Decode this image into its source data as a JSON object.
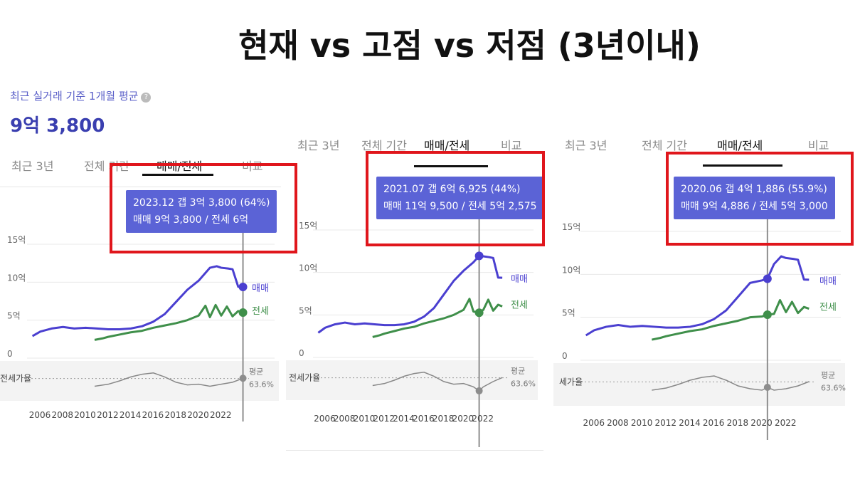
{
  "title": "현재 vs 고점 vs 저점 (3년이내)",
  "summary": {
    "label": "최근 실거래 기준 1개월 평균",
    "value": "9억 3,800"
  },
  "colors": {
    "sale": "#4a3fd0",
    "jeonse": "#3f8f4a",
    "ratio": "#888888",
    "tooltip_bg": "#5b63d6",
    "highlight": "#e0161c"
  },
  "chart_data": [
    {
      "type": "line",
      "tabs": [
        "최근 3년",
        "전체 기간",
        "매매/전세",
        "비교"
      ],
      "active_tab": "매매/전세",
      "tooltip": {
        "line1": "2023.12  갭 3억 3,800 (64%)",
        "line2": "매매 9억 3,800 / 전세 6억"
      },
      "y_ticks": [
        "15억",
        "10억",
        "5억",
        "0"
      ],
      "x_ticks": [
        "2006",
        "2008",
        "2010",
        "2012",
        "2014",
        "2016",
        "2018",
        "2020",
        "2022"
      ],
      "ylim": [
        0,
        15
      ],
      "xlim": [
        2005.2,
        2024.2
      ],
      "marker_x": 2023.92,
      "series": [
        {
          "name": "매매",
          "x": [
            2005.3,
            2006,
            2007,
            2008,
            2009,
            2010,
            2011,
            2012,
            2013,
            2014,
            2015,
            2016,
            2017,
            2018,
            2019,
            2020,
            2021,
            2021.6,
            2022,
            2022.6,
            2023,
            2023.5,
            2023.92
          ],
          "y": [
            2.9,
            3.5,
            3.9,
            4.1,
            3.9,
            4.0,
            3.9,
            3.8,
            3.8,
            3.9,
            4.2,
            4.8,
            5.8,
            7.4,
            9.0,
            10.2,
            11.9,
            12.1,
            11.9,
            11.8,
            11.7,
            9.4,
            9.38
          ]
        },
        {
          "name": "전세",
          "x": [
            2010.8,
            2011.5,
            2012,
            2013,
            2014,
            2015,
            2016,
            2017,
            2018,
            2019,
            2020,
            2020.6,
            2021,
            2021.5,
            2022,
            2022.5,
            2023,
            2023.5,
            2023.92
          ],
          "y": [
            2.4,
            2.6,
            2.8,
            3.1,
            3.4,
            3.6,
            4.0,
            4.3,
            4.6,
            5.0,
            5.6,
            6.9,
            5.4,
            7.0,
            5.6,
            6.8,
            5.5,
            6.2,
            6.0
          ]
        }
      ],
      "ratio": {
        "label": "전세가율",
        "avg_label": "평균",
        "avg_value": "63.6%",
        "x": [
          2010.8,
          2012,
          2013,
          2014,
          2015,
          2016,
          2017,
          2018,
          2019,
          2020,
          2021,
          2022,
          2023,
          2023.92
        ],
        "y": [
          52,
          55,
          60,
          66,
          70,
          72,
          66,
          58,
          54,
          55,
          52,
          55,
          58,
          64
        ]
      }
    },
    {
      "type": "line",
      "tabs": [
        "최근 3년",
        "전체 기간",
        "매매/전세",
        "비교"
      ],
      "active_tab": "매매/전세",
      "tooltip": {
        "line1": "2021.07  갭 6억 6,925 (44%)",
        "line2": "매매 11억 9,500 / 전세 5억 2,575"
      },
      "y_ticks": [
        "15억",
        "10억",
        "5억",
        "0"
      ],
      "x_ticks": [
        "2006",
        "2008",
        "2010",
        "2012",
        "2014",
        "2016",
        "2018",
        "2020",
        "2022"
      ],
      "ylim": [
        0,
        15
      ],
      "xlim": [
        2005.2,
        2024.2
      ],
      "marker_x": 2021.58,
      "series": [
        {
          "name": "매매",
          "x": [
            2005.3,
            2006,
            2007,
            2008,
            2009,
            2010,
            2011,
            2012,
            2013,
            2014,
            2015,
            2016,
            2017,
            2018,
            2019,
            2020,
            2021,
            2021.58,
            2022,
            2022.6,
            2023,
            2023.5,
            2023.92
          ],
          "y": [
            2.9,
            3.5,
            3.9,
            4.1,
            3.9,
            4.0,
            3.9,
            3.8,
            3.8,
            3.9,
            4.2,
            4.8,
            5.8,
            7.4,
            9.0,
            10.2,
            11.2,
            11.95,
            11.9,
            11.8,
            11.7,
            9.4,
            9.38
          ]
        },
        {
          "name": "전세",
          "x": [
            2010.8,
            2011.5,
            2012,
            2013,
            2014,
            2015,
            2016,
            2017,
            2018,
            2019,
            2020,
            2020.6,
            2021,
            2021.58,
            2022,
            2022.5,
            2023,
            2023.5,
            2023.92
          ],
          "y": [
            2.4,
            2.6,
            2.8,
            3.1,
            3.4,
            3.6,
            4.0,
            4.3,
            4.6,
            5.0,
            5.6,
            6.9,
            5.4,
            5.26,
            5.6,
            6.8,
            5.5,
            6.2,
            6.0
          ]
        }
      ],
      "ratio": {
        "label": "전세가율",
        "avg_label": "평균",
        "avg_value": "63.6%",
        "x": [
          2010.8,
          2012,
          2013,
          2014,
          2015,
          2016,
          2017,
          2018,
          2019,
          2020,
          2021,
          2021.58,
          2022,
          2023,
          2023.92
        ],
        "y": [
          52,
          55,
          60,
          66,
          70,
          72,
          66,
          58,
          54,
          55,
          50,
          44,
          50,
          58,
          64
        ]
      }
    },
    {
      "type": "line",
      "tabs": [
        "최근 3년",
        "전체 기간",
        "매매/전세",
        "비교"
      ],
      "active_tab": "매매/전세",
      "tooltip": {
        "line1": "2020.06  갭 4억 1,886 (55.9%)",
        "line2": "매매 9억 4,886 / 전세 5억 3,000"
      },
      "y_ticks": [
        "15억",
        "10억",
        "5억",
        "0"
      ],
      "x_ticks": [
        "2006",
        "2008",
        "2010",
        "2012",
        "2014",
        "2016",
        "2018",
        "2020",
        "2022"
      ],
      "ylim": [
        0,
        15
      ],
      "xlim": [
        2005.2,
        2024.2
      ],
      "marker_x": 2020.45,
      "series": [
        {
          "name": "매매",
          "x": [
            2005.3,
            2006,
            2007,
            2008,
            2009,
            2010,
            2011,
            2012,
            2013,
            2014,
            2015,
            2016,
            2017,
            2018,
            2019,
            2020,
            2020.45,
            2021,
            2021.6,
            2022,
            2022.6,
            2023,
            2023.5,
            2023.92
          ],
          "y": [
            2.9,
            3.5,
            3.9,
            4.1,
            3.9,
            4.0,
            3.9,
            3.8,
            3.8,
            3.9,
            4.2,
            4.8,
            5.8,
            7.4,
            9.0,
            9.3,
            9.49,
            11.2,
            12.1,
            11.9,
            11.8,
            11.7,
            9.4,
            9.38
          ]
        },
        {
          "name": "전세",
          "x": [
            2010.8,
            2011.5,
            2012,
            2013,
            2014,
            2015,
            2016,
            2017,
            2018,
            2019,
            2020,
            2020.45,
            2021,
            2021.5,
            2022,
            2022.5,
            2023,
            2023.5,
            2023.92
          ],
          "y": [
            2.4,
            2.6,
            2.8,
            3.1,
            3.4,
            3.6,
            4.0,
            4.3,
            4.6,
            5.0,
            5.1,
            5.3,
            5.4,
            7.0,
            5.6,
            6.8,
            5.5,
            6.2,
            6.0
          ]
        }
      ],
      "ratio": {
        "label": "세가율",
        "avg_label": "평균",
        "avg_value": "63.6%",
        "x": [
          2010.8,
          2012,
          2013,
          2014,
          2015,
          2016,
          2017,
          2018,
          2019,
          2020,
          2020.45,
          2021,
          2022,
          2023,
          2023.92
        ],
        "y": [
          52,
          55,
          60,
          66,
          70,
          72,
          66,
          58,
          54,
          52,
          56,
          52,
          54,
          58,
          64
        ]
      }
    }
  ]
}
